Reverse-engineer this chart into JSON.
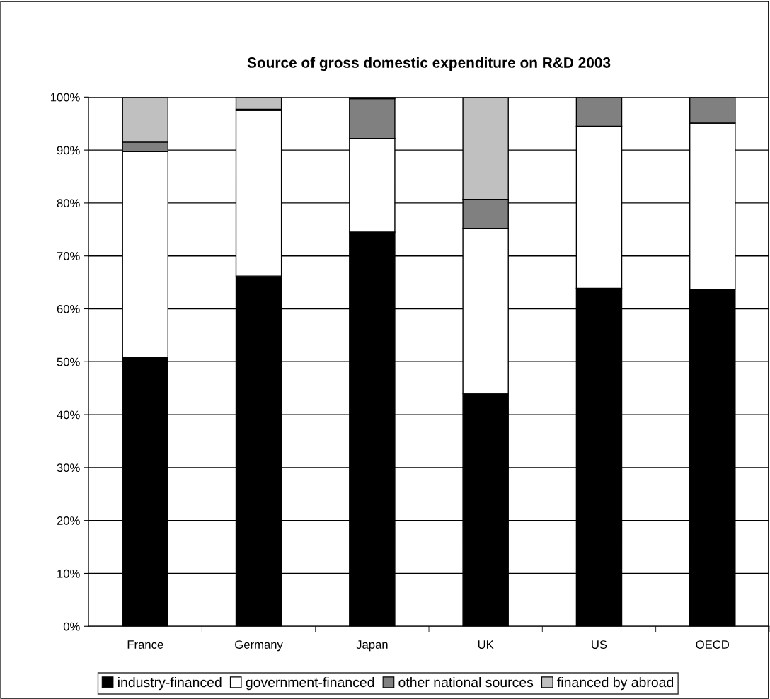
{
  "chart_data": {
    "type": "bar",
    "title": "Source of gross domestic expenditure on R&D 2003",
    "categories": [
      "France",
      "Germany",
      "Japan",
      "UK",
      "US",
      "OECD"
    ],
    "stacked": true,
    "series": [
      {
        "name": "industry-financed",
        "color": "#000000",
        "values": [
          50.8,
          66.2,
          74.5,
          44.0,
          63.9,
          63.7
        ]
      },
      {
        "name": "government-financed",
        "color": "#ffffff",
        "values": [
          38.9,
          31.3,
          17.7,
          31.2,
          30.6,
          31.4
        ]
      },
      {
        "name": "other national sources",
        "color": "#808080",
        "values": [
          1.8,
          0.2,
          7.5,
          5.5,
          5.5,
          4.9
        ]
      },
      {
        "name": "financed by abroad",
        "color": "#c0c0c0",
        "values": [
          8.5,
          2.3,
          0.3,
          19.3,
          null,
          null
        ]
      }
    ],
    "ylim": [
      0,
      100
    ],
    "yticks": [
      {
        "value": 0,
        "label": "0%"
      },
      {
        "value": 10,
        "label": "10%"
      },
      {
        "value": 20,
        "label": "20%"
      },
      {
        "value": 30,
        "label": "30%"
      },
      {
        "value": 40,
        "label": "40%"
      },
      {
        "value": 50,
        "label": "50%"
      },
      {
        "value": 60,
        "label": "60%"
      },
      {
        "value": 70,
        "label": "70%"
      },
      {
        "value": 80,
        "label": "80%"
      },
      {
        "value": 90,
        "label": "90%"
      },
      {
        "value": 100,
        "label": "100%"
      }
    ],
    "grid": "y",
    "legend": "bottom"
  }
}
